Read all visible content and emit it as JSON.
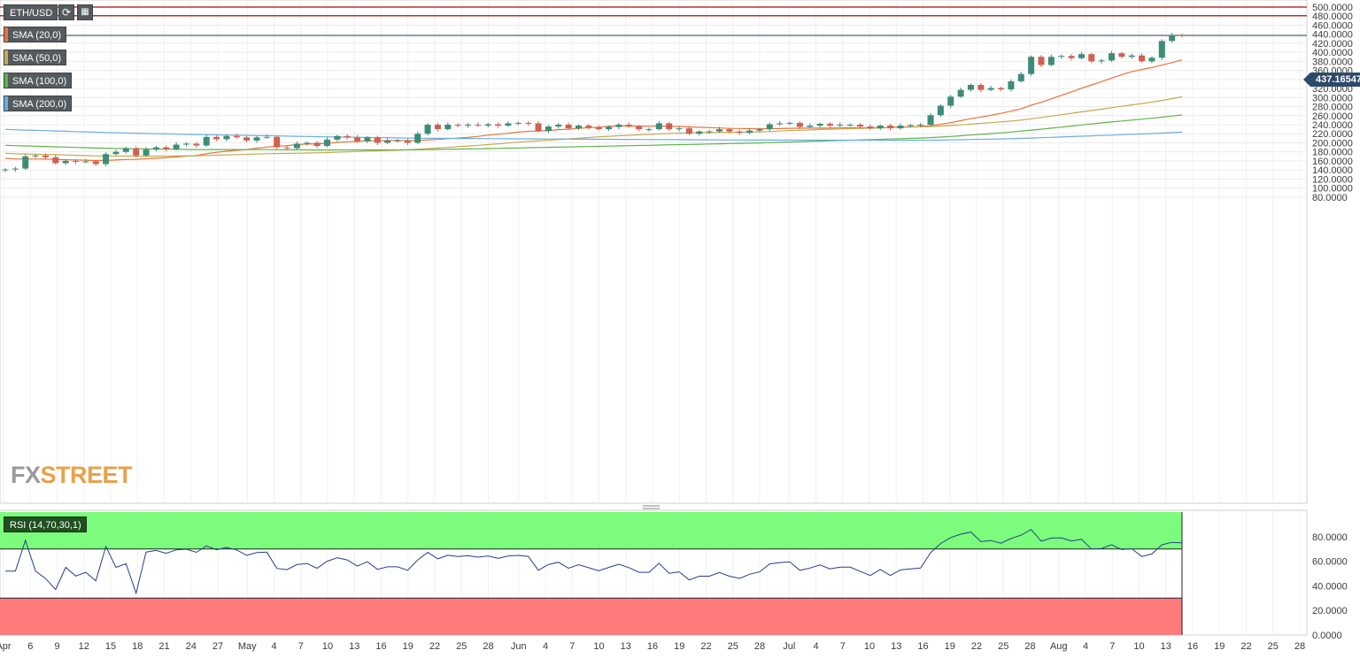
{
  "toolbar": {
    "symbol": "ETH/USD",
    "refresh_icon": "refresh-icon",
    "calendar_icon": "calendar-icon"
  },
  "indicators": [
    {
      "label": "SMA (20,0)",
      "color": "#e8743b"
    },
    {
      "label": "SMA (50,0)",
      "color": "#c8a951"
    },
    {
      "label": "SMA (100,0)",
      "color": "#5fb34a"
    },
    {
      "label": "SMA (200,0)",
      "color": "#6aaee0"
    }
  ],
  "rsi_label": "RSI (14,70,30,1)",
  "current_price": "437.16547",
  "logo": {
    "part1": "FX",
    "part2": "STREET",
    "color1": "#9a9a9a",
    "color2": "#e8a24a"
  },
  "chart_data": {
    "type": "candlestick",
    "y_ticks": [
      "500.0000",
      "480.0000",
      "460.0000",
      "440.0000",
      "420.0000",
      "400.0000",
      "380.0000",
      "360.0000",
      "340.0000",
      "320.0000",
      "300.0000",
      "280.0000",
      "260.0000",
      "240.0000",
      "220.0000",
      "200.0000",
      "180.0000",
      "160.0000",
      "140.0000",
      "120.0000",
      "100.0000",
      "80.0000"
    ],
    "ylim": [
      70,
      510
    ],
    "x_ticks": [
      "Apr",
      "6",
      "9",
      "12",
      "15",
      "18",
      "21",
      "24",
      "27",
      "May",
      "4",
      "7",
      "10",
      "13",
      "16",
      "19",
      "22",
      "25",
      "28",
      "Jun",
      "4",
      "7",
      "10",
      "13",
      "16",
      "19",
      "22",
      "25",
      "28",
      "Jul",
      "4",
      "7",
      "10",
      "13",
      "16",
      "19",
      "22",
      "25",
      "28",
      "Aug",
      "4",
      "7",
      "10",
      "13",
      "16",
      "19",
      "22",
      "25",
      "28"
    ],
    "resistance_levels": [
      500,
      481
    ],
    "current_level": 437.16547,
    "colors": {
      "up": "#3d8c78",
      "down": "#cf6150",
      "level": "#c0302e",
      "price_line": "#2e4a6b"
    },
    "closes": [
      141,
      143,
      170,
      172,
      168,
      155,
      160,
      158,
      159,
      153,
      175,
      180,
      188,
      172,
      185,
      190,
      186,
      196,
      198,
      194,
      213,
      208,
      215,
      212,
      205,
      212,
      213,
      190,
      188,
      198,
      200,
      193,
      207,
      215,
      212,
      203,
      212,
      200,
      205,
      205,
      200,
      220,
      240,
      230,
      240,
      238,
      240,
      238,
      241,
      238,
      243,
      244,
      243,
      226,
      236,
      240,
      232,
      238,
      234,
      230,
      235,
      240,
      236,
      230,
      230,
      243,
      230,
      232,
      220,
      225,
      225,
      230,
      225,
      222,
      227,
      230,
      241,
      243,
      244,
      235,
      238,
      242,
      238,
      240,
      240,
      236,
      232,
      238,
      232,
      238,
      239,
      240,
      261,
      282,
      302,
      317,
      328,
      317,
      321,
      318,
      336,
      352,
      390,
      372,
      390,
      392,
      387,
      396,
      380,
      382,
      398,
      390,
      393,
      380,
      388,
      425,
      438,
      437
    ],
    "rsi": {
      "ylim": [
        0,
        100
      ],
      "y_ticks": [
        "80.0000",
        "60.0000",
        "40.0000",
        "20.0000",
        "0.0000"
      ],
      "overbought": 70,
      "oversold": 30,
      "colors": {
        "line": "#253e8c",
        "overbought_fill": "#7cfc7c",
        "oversold_fill": "#fd7b7b"
      }
    }
  }
}
